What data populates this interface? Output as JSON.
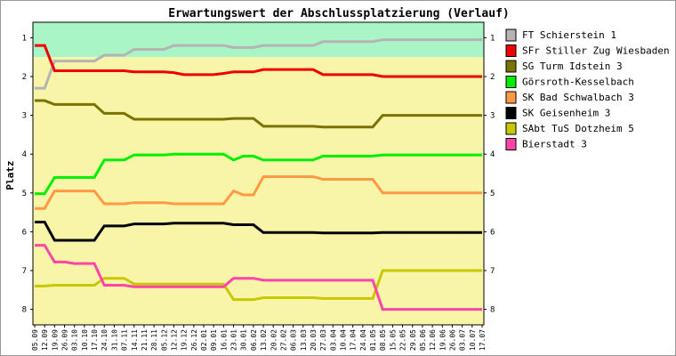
{
  "chart_data": {
    "type": "line",
    "title": "Erwartungswert der Abschlussplatzierung (Verlauf)",
    "ylabel": "Platz",
    "xlabel": "",
    "ylim": [
      0.6,
      8.4
    ],
    "y_ticks": [
      1,
      2,
      3,
      4,
      5,
      6,
      7,
      8
    ],
    "y_inverted": true,
    "grid": false,
    "legend_position": "right",
    "bands": [
      {
        "from": 0.6,
        "to": 1.5,
        "color": "#aaf5c5"
      },
      {
        "from": 1.5,
        "to": 8.4,
        "color": "#f8f5a9"
      }
    ],
    "x": [
      "05.09",
      "12.09",
      "19.09",
      "26.09",
      "03.10",
      "10.10",
      "17.10",
      "24.10",
      "31.10",
      "07.11",
      "14.11",
      "21.11",
      "28.11",
      "05.12",
      "12.12",
      "19.12",
      "26.12",
      "02.01",
      "09.01",
      "16.01",
      "23.01",
      "30.01",
      "06.02",
      "13.02",
      "20.02",
      "27.02",
      "06.03",
      "13.03",
      "20.03",
      "27.03",
      "03.04",
      "10.04",
      "17.04",
      "24.04",
      "01.05",
      "08.05",
      "15.05",
      "22.05",
      "29.05",
      "05.06",
      "12.06",
      "19.06",
      "26.06",
      "03.07",
      "10.07",
      "17.07"
    ],
    "series": [
      {
        "name": "FT Schierstein 1",
        "color": "#b4b4b4",
        "values": [
          2.3,
          2.3,
          1.6,
          1.6,
          1.6,
          1.6,
          1.6,
          1.45,
          1.45,
          1.45,
          1.3,
          1.3,
          1.3,
          1.3,
          1.2,
          1.2,
          1.2,
          1.2,
          1.2,
          1.2,
          1.25,
          1.25,
          1.25,
          1.2,
          1.2,
          1.2,
          1.2,
          1.2,
          1.2,
          1.1,
          1.1,
          1.1,
          1.1,
          1.1,
          1.1,
          1.05,
          1.05,
          1.05,
          1.05,
          1.05,
          1.05,
          1.05,
          1.05,
          1.05,
          1.05,
          1.05
        ]
      },
      {
        "name": "SFr Stiller Zug Wiesbaden 2",
        "color": "#ee0000",
        "values": [
          1.2,
          1.2,
          1.85,
          1.85,
          1.85,
          1.85,
          1.85,
          1.85,
          1.85,
          1.85,
          1.88,
          1.88,
          1.88,
          1.88,
          1.9,
          1.95,
          1.95,
          1.95,
          1.95,
          1.92,
          1.88,
          1.88,
          1.88,
          1.82,
          1.82,
          1.82,
          1.82,
          1.82,
          1.82,
          1.95,
          1.95,
          1.95,
          1.95,
          1.95,
          1.95,
          2.0,
          2.0,
          2.0,
          2.0,
          2.0,
          2.0,
          2.0,
          2.0,
          2.0,
          2.0,
          2.0
        ]
      },
      {
        "name": "SG Turm Idstein 3",
        "color": "#7a7300",
        "values": [
          2.62,
          2.62,
          2.72,
          2.72,
          2.72,
          2.72,
          2.72,
          2.95,
          2.95,
          2.95,
          3.1,
          3.1,
          3.1,
          3.1,
          3.1,
          3.1,
          3.1,
          3.1,
          3.1,
          3.1,
          3.08,
          3.08,
          3.08,
          3.28,
          3.28,
          3.28,
          3.28,
          3.28,
          3.28,
          3.3,
          3.3,
          3.3,
          3.3,
          3.3,
          3.3,
          3.0,
          3.0,
          3.0,
          3.0,
          3.0,
          3.0,
          3.0,
          3.0,
          3.0,
          3.0,
          3.0
        ]
      },
      {
        "name": "Görsroth-Kesselbach",
        "color": "#00ee00",
        "values": [
          5.02,
          5.02,
          4.6,
          4.6,
          4.6,
          4.6,
          4.6,
          4.15,
          4.15,
          4.15,
          4.02,
          4.02,
          4.02,
          4.02,
          4.0,
          4.0,
          4.0,
          4.0,
          4.0,
          4.0,
          4.15,
          4.05,
          4.05,
          4.15,
          4.15,
          4.15,
          4.15,
          4.15,
          4.15,
          4.05,
          4.05,
          4.05,
          4.05,
          4.05,
          4.05,
          4.02,
          4.02,
          4.02,
          4.02,
          4.02,
          4.02,
          4.02,
          4.02,
          4.02,
          4.02,
          4.02
        ]
      },
      {
        "name": "SK Bad Schwalbach 3",
        "color": "#ff9944",
        "values": [
          5.4,
          5.4,
          4.95,
          4.95,
          4.95,
          4.95,
          4.95,
          5.28,
          5.28,
          5.28,
          5.25,
          5.25,
          5.25,
          5.25,
          5.28,
          5.28,
          5.28,
          5.28,
          5.28,
          5.28,
          4.95,
          5.05,
          5.05,
          4.58,
          4.58,
          4.58,
          4.58,
          4.58,
          4.58,
          4.65,
          4.65,
          4.65,
          4.65,
          4.65,
          4.65,
          5.0,
          5.0,
          5.0,
          5.0,
          5.0,
          5.0,
          5.0,
          5.0,
          5.0,
          5.0,
          5.0
        ]
      },
      {
        "name": "SK Geisenheim 3",
        "color": "#000000",
        "values": [
          5.75,
          5.75,
          6.22,
          6.22,
          6.22,
          6.22,
          6.22,
          5.85,
          5.85,
          5.85,
          5.8,
          5.8,
          5.8,
          5.8,
          5.78,
          5.78,
          5.78,
          5.78,
          5.78,
          5.78,
          5.82,
          5.82,
          5.82,
          6.02,
          6.02,
          6.02,
          6.02,
          6.02,
          6.02,
          6.03,
          6.03,
          6.03,
          6.03,
          6.03,
          6.03,
          6.02,
          6.02,
          6.02,
          6.02,
          6.02,
          6.02,
          6.02,
          6.02,
          6.02,
          6.02,
          6.02
        ]
      },
      {
        "name": "SAbt TuS Dotzheim 5",
        "color": "#c8c800",
        "values": [
          7.4,
          7.4,
          7.38,
          7.38,
          7.38,
          7.38,
          7.38,
          7.2,
          7.2,
          7.2,
          7.35,
          7.35,
          7.35,
          7.35,
          7.35,
          7.35,
          7.35,
          7.35,
          7.35,
          7.35,
          7.75,
          7.75,
          7.75,
          7.7,
          7.7,
          7.7,
          7.7,
          7.7,
          7.7,
          7.72,
          7.72,
          7.72,
          7.72,
          7.72,
          7.72,
          7.0,
          7.0,
          7.0,
          7.0,
          7.0,
          7.0,
          7.0,
          7.0,
          7.0,
          7.0,
          7.0
        ]
      },
      {
        "name": "Bierstadt 3",
        "color": "#ff44aa",
        "values": [
          6.35,
          6.35,
          6.78,
          6.78,
          6.82,
          6.82,
          6.82,
          7.38,
          7.38,
          7.38,
          7.42,
          7.42,
          7.42,
          7.42,
          7.42,
          7.42,
          7.42,
          7.42,
          7.42,
          7.42,
          7.2,
          7.2,
          7.2,
          7.25,
          7.25,
          7.25,
          7.25,
          7.25,
          7.25,
          7.25,
          7.25,
          7.25,
          7.25,
          7.25,
          7.25,
          8.0,
          8.0,
          8.0,
          8.0,
          8.0,
          8.0,
          8.0,
          8.0,
          8.0,
          8.0,
          8.0
        ]
      }
    ]
  }
}
